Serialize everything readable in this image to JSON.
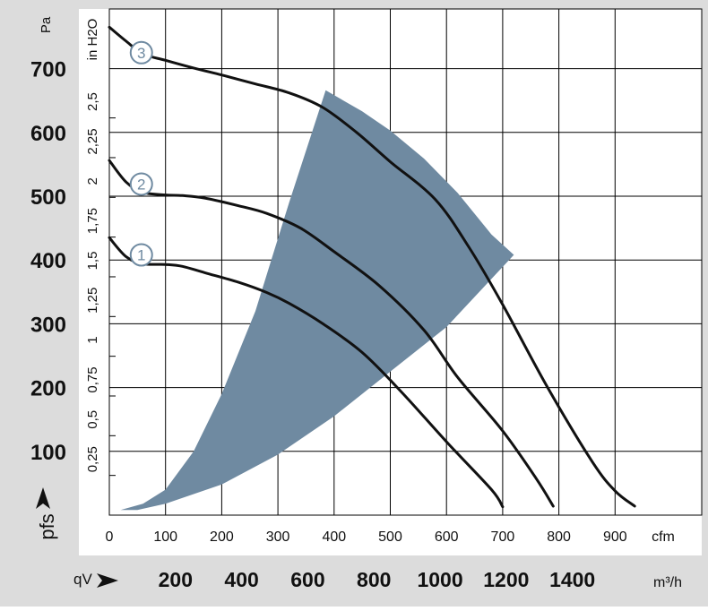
{
  "chart_data": {
    "type": "line",
    "title": "",
    "x_axis_top_unit": "cfm",
    "x_axis_top_ticks": [
      0,
      100,
      200,
      300,
      400,
      500,
      600,
      700,
      800,
      900
    ],
    "x_axis_top_range": [
      0,
      1010
    ],
    "x_axis_bottom_label": "qV",
    "x_axis_bottom_unit": "m³/h",
    "x_axis_bottom_ticks": [
      200,
      400,
      600,
      800,
      1000,
      1200,
      1400
    ],
    "y_axis_left_label": "pfs",
    "y_axis_left_unit": "Pa",
    "y_axis_left_ticks": [
      100,
      200,
      300,
      400,
      500,
      600,
      700
    ],
    "y_axis_left_range": [
      0,
      775
    ],
    "y_axis_inner_unit": "in H2O",
    "y_axis_inner_ticks": [
      "0,25",
      "0,5",
      "0,75",
      "1",
      "1,25",
      "1,5",
      "1,75",
      "2",
      "2,25",
      "2,5"
    ],
    "y_axis_inner_values": [
      0.25,
      0.5,
      0.75,
      1,
      1.25,
      1.5,
      1.75,
      2,
      2.25,
      2.5
    ],
    "series": [
      {
        "name": "1",
        "points": [
          [
            0,
            435
          ],
          [
            30,
            405
          ],
          [
            60,
            394
          ],
          [
            100,
            393
          ],
          [
            130,
            390
          ],
          [
            170,
            380
          ],
          [
            230,
            365
          ],
          [
            280,
            349
          ],
          [
            320,
            332
          ],
          [
            380,
            300
          ],
          [
            450,
            255
          ],
          [
            520,
            193
          ],
          [
            600,
            115
          ],
          [
            680,
            40
          ],
          [
            700,
            13
          ]
        ]
      },
      {
        "name": "2",
        "points": [
          [
            0,
            556
          ],
          [
            30,
            522
          ],
          [
            60,
            506
          ],
          [
            100,
            502
          ],
          [
            130,
            501
          ],
          [
            170,
            497
          ],
          [
            230,
            485
          ],
          [
            280,
            473
          ],
          [
            340,
            450
          ],
          [
            400,
            413
          ],
          [
            480,
            360
          ],
          [
            560,
            290
          ],
          [
            620,
            216
          ],
          [
            700,
            132
          ],
          [
            760,
            57
          ],
          [
            790,
            14
          ]
        ]
      },
      {
        "name": "3",
        "points": [
          [
            0,
            765
          ],
          [
            30,
            743
          ],
          [
            60,
            723
          ],
          [
            100,
            713
          ],
          [
            150,
            701
          ],
          [
            200,
            690
          ],
          [
            260,
            676
          ],
          [
            320,
            662
          ],
          [
            380,
            639
          ],
          [
            440,
            600
          ],
          [
            500,
            554
          ],
          [
            580,
            495
          ],
          [
            640,
            420
          ],
          [
            700,
            330
          ],
          [
            780,
            200
          ],
          [
            860,
            83
          ],
          [
            900,
            38
          ],
          [
            935,
            14
          ]
        ]
      }
    ],
    "operating_region": {
      "upper_boundary": [
        [
          385,
          666
        ],
        [
          450,
          633
        ],
        [
          500,
          603
        ],
        [
          560,
          559
        ],
        [
          620,
          505
        ],
        [
          680,
          440
        ],
        [
          720,
          408
        ]
      ],
      "lower_boundary": [
        [
          720,
          408
        ],
        [
          600,
          295
        ],
        [
          500,
          225
        ],
        [
          400,
          155
        ],
        [
          300,
          95
        ],
        [
          200,
          48
        ],
        [
          100,
          18
        ],
        [
          50,
          8
        ],
        [
          20,
          8
        ]
      ],
      "left_boundary": [
        [
          20,
          8
        ],
        [
          60,
          18
        ],
        [
          100,
          40
        ],
        [
          150,
          100
        ],
        [
          200,
          190
        ],
        [
          260,
          320
        ],
        [
          320,
          490
        ],
        [
          385,
          666
        ]
      ],
      "color": "#6f8aa1"
    },
    "markers": [
      {
        "label": "1",
        "at": [
          65,
          408
        ]
      },
      {
        "label": "2",
        "at": [
          65,
          519
        ]
      },
      {
        "label": "3",
        "at": [
          65,
          725
        ]
      }
    ],
    "grid": true
  }
}
